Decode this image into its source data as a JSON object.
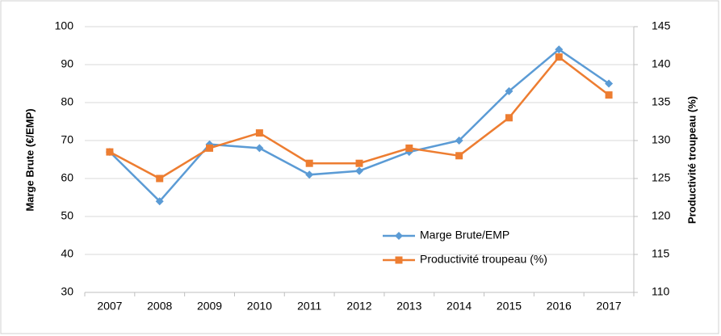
{
  "chart_data": {
    "type": "line",
    "y_label": "Marge Brute (€/EMP)",
    "y2_label": "Productivité troupeau (%)",
    "categories": [
      "2007",
      "2008",
      "2009",
      "2010",
      "2011",
      "2012",
      "2013",
      "2014",
      "2015",
      "2016",
      "2017"
    ],
    "series": [
      {
        "name": "Marge Brute/EMP",
        "color": "#5b9bd5",
        "marker": "diamond",
        "values": [
          67,
          54,
          69,
          68,
          61,
          62,
          67,
          70,
          83,
          94,
          85
        ]
      },
      {
        "name": "Productivité troupeau (%)",
        "color": "#ed7d31",
        "marker": "square",
        "axis": "y2",
        "values": [
          128.5,
          125,
          129,
          131,
          127,
          127,
          129,
          128,
          133,
          141,
          136
        ]
      }
    ],
    "ylim": [
      30,
      100
    ],
    "yticks": [
      30,
      40,
      50,
      60,
      70,
      80,
      90,
      100
    ],
    "y2lim": [
      110,
      145
    ],
    "y2ticks": [
      110,
      115,
      120,
      125,
      130,
      135,
      140,
      145
    ],
    "grid": true,
    "legend": "inside-bottom-center"
  }
}
